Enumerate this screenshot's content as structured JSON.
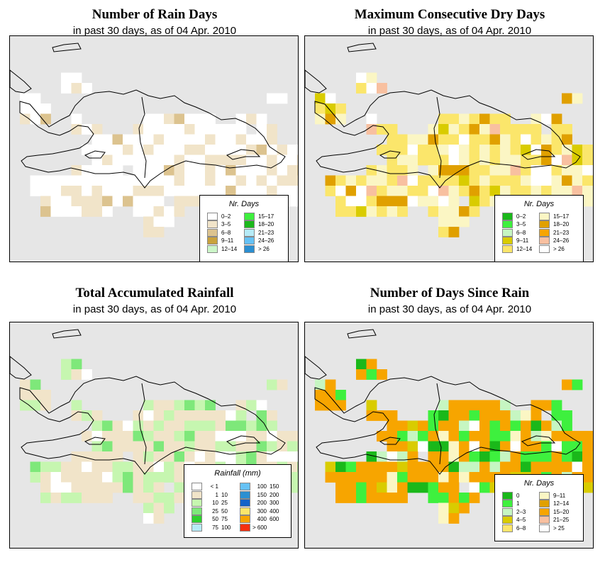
{
  "panels": [
    {
      "title": "Number of Rain Days",
      "subtitle": "in past 30 days, as of  04 Apr. 2010",
      "legend": {
        "title": "Nr. Days",
        "items": [
          {
            "label": "0–2",
            "color": "#ffffff"
          },
          {
            "label": "3–5",
            "color": "#f1e4c9"
          },
          {
            "label": "6–8",
            "color": "#dcc38f"
          },
          {
            "label": "9–11",
            "color": "#c9a23c"
          },
          {
            "label": "12–14",
            "color": "#ccf6c8"
          },
          {
            "label": "15–17",
            "color": "#3ef03e"
          },
          {
            "label": "18–20",
            "color": "#1cb81c"
          },
          {
            "label": "21–23",
            "color": "#b6ebf7"
          },
          {
            "label": "24–26",
            "color": "#66c2f5"
          },
          {
            "label": "> 26",
            "color": "#2b8fd1"
          }
        ]
      }
    },
    {
      "title": "Maximum Consecutive Dry Days",
      "subtitle": "in past 30 days, as of  04 Apr. 2010",
      "legend": {
        "title": "Nr. Days",
        "items": [
          {
            "label": "0–2",
            "color": "#1ab81a"
          },
          {
            "label": "3–5",
            "color": "#3ef03e"
          },
          {
            "label": "6–8",
            "color": "#c6f6c2"
          },
          {
            "label": "9–11",
            "color": "#d9cc00"
          },
          {
            "label": "12–14",
            "color": "#fbe66b"
          },
          {
            "label": "15–17",
            "color": "#fbf6c4"
          },
          {
            "label": "18–20",
            "color": "#e0a000"
          },
          {
            "label": "21–23",
            "color": "#f7a500"
          },
          {
            "label": "24–26",
            "color": "#f8c0a0"
          },
          {
            "label": "> 26",
            "color": "#ffffff"
          }
        ]
      }
    },
    {
      "title": "Total Accumulated Rainfall",
      "subtitle": "in past 30 days, as of  04 Apr. 2010",
      "legend": {
        "title": "Rainfall (mm)",
        "items": [
          {
            "a": "< 1",
            "b": "",
            "color": "#ffffff"
          },
          {
            "a": "1",
            "b": "10",
            "color": "#f1e4c9"
          },
          {
            "a": "10",
            "b": "25",
            "color": "#c6f6b0"
          },
          {
            "a": "25",
            "b": "50",
            "color": "#7ee87a"
          },
          {
            "a": "50",
            "b": "75",
            "color": "#2ed02e"
          },
          {
            "a": "75",
            "b": "100",
            "color": "#b6ebf7"
          },
          {
            "a": "100",
            "b": "150",
            "color": "#66c2f5"
          },
          {
            "a": "150",
            "b": "200",
            "color": "#2b8fd1"
          },
          {
            "a": "200",
            "b": "300",
            "color": "#1463c8"
          },
          {
            "a": "300",
            "b": "400",
            "color": "#fbe66b"
          },
          {
            "a": "400",
            "b": "600",
            "color": "#f7a500"
          },
          {
            "a": "> 600",
            "b": "",
            "color": "#f53010"
          }
        ]
      }
    },
    {
      "title": "Number of Days Since Rain",
      "subtitle": "in past 30 days, as of  04 Apr. 2010",
      "legend": {
        "title": "Nr. Days",
        "items": [
          {
            "label": "0",
            "color": "#1ab81a"
          },
          {
            "label": "1",
            "color": "#3ef03e"
          },
          {
            "label": "2–3",
            "color": "#c6f6c2"
          },
          {
            "label": "4–5",
            "color": "#d9cc00"
          },
          {
            "label": "6–8",
            "color": "#fbe66b"
          },
          {
            "label": "9–11",
            "color": "#fbf6c4"
          },
          {
            "label": "12–14",
            "color": "#e0a000"
          },
          {
            "label": "15–20",
            "color": "#f7a500"
          },
          {
            "label": "21–25",
            "color": "#f8c0a0"
          },
          {
            "label": "> 25",
            "color": "#ffffff"
          }
        ]
      }
    }
  ]
}
